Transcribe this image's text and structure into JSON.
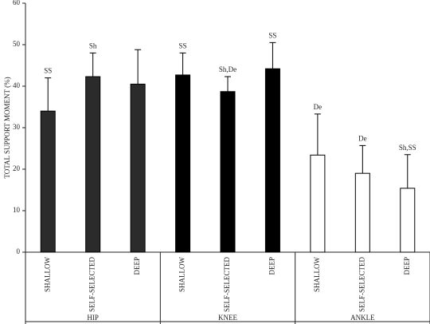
{
  "chart_data": {
    "type": "bar",
    "y_label": "TOTAL SUPPORT MOMENT (%)",
    "ylim": [
      0,
      60
    ],
    "yticks": [
      0,
      10,
      20,
      30,
      40,
      50,
      60
    ],
    "groups": [
      {
        "name": "HIP",
        "color": "#2b2b2b",
        "categories": [
          "SHALLOW",
          "SELF-SELECTED",
          "DEEP"
        ],
        "values": [
          34,
          42.3,
          40.5
        ],
        "errors": [
          8,
          5.7,
          8.3
        ],
        "annotations": [
          "SS",
          "Sh",
          null
        ]
      },
      {
        "name": "KNEE",
        "color": "#000000",
        "categories": [
          "SHALLOW",
          "SELF-SELECTED",
          "DEEP"
        ],
        "values": [
          42.7,
          38.7,
          44.2
        ],
        "errors": [
          5.3,
          3.6,
          6.3
        ],
        "annotations": [
          "SS",
          "Sh,De",
          "SS"
        ]
      },
      {
        "name": "ANKLE",
        "color": "#ffffff",
        "categories": [
          "SHALLOW",
          "SELF-SELECTED",
          "DEEP"
        ],
        "values": [
          23.4,
          19,
          15.4
        ],
        "errors": [
          9.9,
          6.7,
          8.1
        ],
        "annotations": [
          "De",
          "De",
          "Sh,SS"
        ]
      }
    ]
  }
}
